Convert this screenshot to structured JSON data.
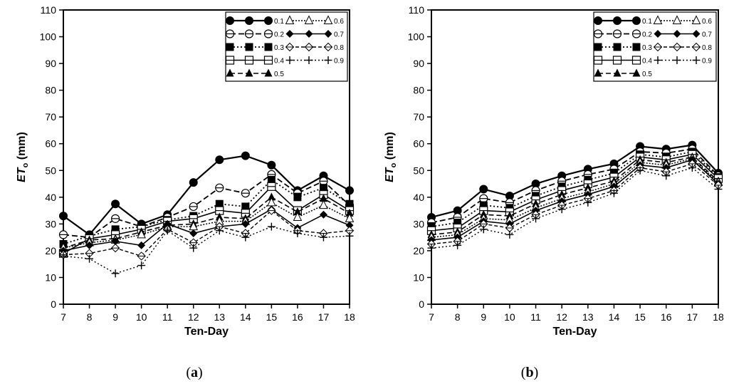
{
  "chart_data": [
    {
      "type": "line",
      "panel_caption": {
        "open": "(",
        "letter": "a",
        "close": ")"
      },
      "xlabel": "Ten-Day",
      "ylabel_main": "ET",
      "ylabel_sub": "o",
      "ylabel_unit": " (mm)",
      "ylim": [
        0,
        110
      ],
      "yticks": [
        "0",
        "10",
        "20",
        "30",
        "40",
        "50",
        "60",
        "70",
        "80",
        "90",
        "100",
        "110"
      ],
      "categories": [
        "7",
        "8",
        "9",
        "10",
        "11",
        "12",
        "13",
        "14",
        "15",
        "16",
        "17",
        "18"
      ],
      "series": [
        {
          "name": "0.1",
          "values": [
            33,
            26,
            37.5,
            30,
            33.5,
            45.5,
            54,
            55.5,
            52,
            42.5,
            48,
            42.5
          ]
        },
        {
          "name": "0.2",
          "values": [
            26,
            25,
            32,
            29,
            32.5,
            36.5,
            43.5,
            41.5,
            48.5,
            41.5,
            46,
            37
          ]
        },
        {
          "name": "0.3",
          "values": [
            22.5,
            25.5,
            28,
            29,
            31.5,
            33,
            37.5,
            36.5,
            46.5,
            40,
            43.5,
            37.5
          ]
        },
        {
          "name": "0.4",
          "values": [
            19,
            24.5,
            26,
            28,
            31,
            32,
            35,
            34,
            44,
            35,
            41,
            35
          ]
        },
        {
          "name": "0.5",
          "values": [
            21,
            24,
            24.5,
            27,
            29.5,
            30,
            32.5,
            32,
            40,
            34.5,
            39.5,
            34
          ]
        },
        {
          "name": "0.6",
          "values": [
            21,
            23,
            24,
            26,
            29,
            29,
            31,
            31,
            38,
            32.5,
            37,
            32
          ]
        },
        {
          "name": "0.7",
          "values": [
            20,
            22,
            23.5,
            22,
            30,
            26.5,
            29,
            30,
            35.5,
            28.5,
            33.5,
            29.5
          ]
        },
        {
          "name": "0.8",
          "values": [
            18.5,
            19,
            21,
            18,
            28,
            23,
            29,
            26.5,
            35,
            27.5,
            26.5,
            27.5
          ]
        },
        {
          "name": "0.9",
          "values": [
            18,
            17,
            11.5,
            14.5,
            27.5,
            21,
            27.5,
            25,
            29,
            26.5,
            25,
            25.5
          ]
        }
      ]
    },
    {
      "type": "line",
      "panel_caption": {
        "open": "(",
        "letter": "b",
        "close": ")"
      },
      "xlabel": "Ten-Day",
      "ylabel_main": "ET",
      "ylabel_sub": "o",
      "ylabel_unit": " (mm)",
      "ylim": [
        0,
        110
      ],
      "yticks": [
        "0",
        "10",
        "20",
        "30",
        "40",
        "50",
        "60",
        "70",
        "80",
        "90",
        "100",
        "110"
      ],
      "categories": [
        "7",
        "8",
        "9",
        "10",
        "11",
        "12",
        "13",
        "14",
        "15",
        "16",
        "17",
        "18"
      ],
      "series": [
        {
          "name": "0.1",
          "values": [
            32.5,
            35,
            43,
            40.5,
            45,
            48,
            50.5,
            52.5,
            59,
            58,
            59.5,
            49
          ]
        },
        {
          "name": "0.2",
          "values": [
            30.5,
            32.5,
            39.5,
            38,
            42.5,
            46,
            48.5,
            50.5,
            57,
            56.5,
            58,
            48
          ]
        },
        {
          "name": "0.3",
          "values": [
            29,
            30.5,
            37,
            36,
            40.5,
            44,
            46.5,
            49,
            56,
            55,
            57,
            47.5
          ]
        },
        {
          "name": "0.4",
          "values": [
            27.5,
            28.5,
            35,
            34.5,
            39,
            42.5,
            45,
            47.5,
            55,
            54,
            56,
            47
          ]
        },
        {
          "name": "0.5",
          "values": [
            26,
            27,
            33.5,
            33,
            37.5,
            41,
            43.5,
            46,
            54,
            53,
            55,
            46
          ]
        },
        {
          "name": "0.6",
          "values": [
            25,
            26,
            32,
            31.5,
            36,
            39.5,
            42,
            45,
            53,
            52,
            54.5,
            45.5
          ]
        },
        {
          "name": "0.7",
          "values": [
            24,
            25,
            31,
            30,
            35,
            38.5,
            41,
            44,
            52,
            51,
            54,
            45
          ]
        },
        {
          "name": "0.8",
          "values": [
            22.5,
            23.5,
            30,
            28.5,
            33.5,
            37,
            39.5,
            42.5,
            51,
            49.5,
            52.5,
            44.5
          ]
        },
        {
          "name": "0.9",
          "values": [
            21,
            22,
            28,
            26,
            32,
            35.5,
            38,
            41.5,
            50,
            48,
            51,
            43
          ]
        }
      ]
    }
  ]
}
